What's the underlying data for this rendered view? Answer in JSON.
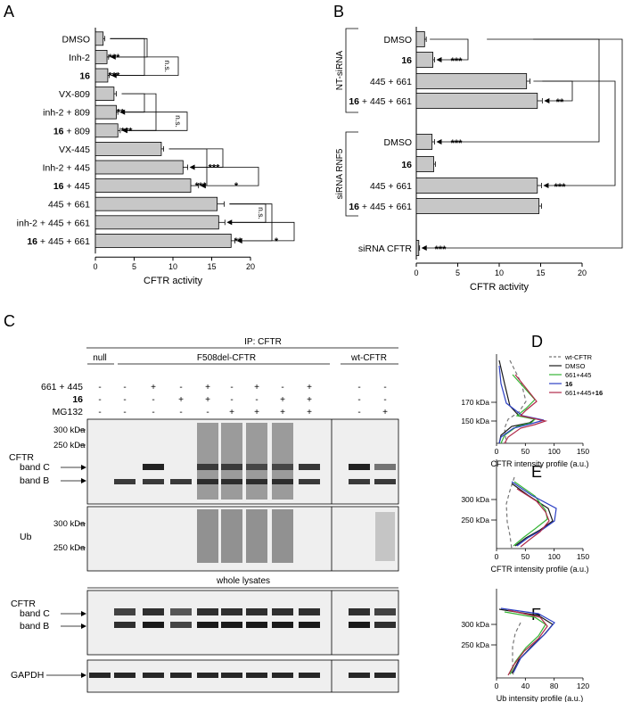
{
  "panels": {
    "A": "A",
    "B": "B",
    "C": "C",
    "D": "D",
    "E": "E",
    "F": "F"
  },
  "chart_data": [
    {
      "panel": "A",
      "type": "bar",
      "orientation": "horizontal",
      "categories": [
        "DMSO",
        "Inh-2",
        "16",
        "VX-809",
        "inh-2 + 809",
        "16 + 809",
        "VX-445",
        "Inh-2 + 445",
        "16 + 445",
        "445 + 661",
        "inh-2 + 445 + 661",
        "16 + 445 + 661"
      ],
      "values": [
        1.0,
        1.5,
        1.6,
        2.4,
        2.7,
        2.9,
        8.5,
        11.3,
        12.3,
        15.7,
        15.9,
        17.5
      ],
      "errors": [
        0.2,
        0.2,
        0.2,
        0.3,
        0.2,
        0.3,
        0.3,
        0.6,
        1.0,
        0.9,
        0.8,
        0.5
      ],
      "xlabel": "CFTR activity",
      "xlim": [
        0,
        20
      ],
      "xticks": [
        0,
        5,
        10,
        15,
        20
      ],
      "significance": [
        "***",
        "***",
        "n.s.",
        "**",
        "***",
        "n.s.",
        "***",
        "***",
        "*",
        "n.s.",
        "**",
        "*"
      ]
    },
    {
      "panel": "B",
      "type": "bar",
      "orientation": "horizontal",
      "groups": [
        "NT-siRNA",
        "siRNA RNF5"
      ],
      "categories": [
        "DMSO",
        "16",
        "445 + 661",
        "16 + 445 + 661",
        "DMSO",
        "16",
        "445 + 661",
        "16 + 445 + 661",
        "siRNA CFTR"
      ],
      "values": [
        1.0,
        2.0,
        13.3,
        14.6,
        1.9,
        2.1,
        14.6,
        14.8,
        0.3
      ],
      "errors": [
        0.2,
        0.2,
        0.4,
        0.6,
        0.3,
        0.2,
        0.5,
        0.3,
        0.1
      ],
      "xlabel": "CFTR activity",
      "xlim": [
        0,
        20
      ],
      "xticks": [
        0,
        5,
        10,
        15,
        20
      ],
      "significance": [
        "***",
        "**",
        "***",
        "***",
        "***"
      ]
    },
    {
      "panel": "D",
      "type": "line",
      "xlabel": "CFTR intensity profile (a.u.)",
      "xticks": [
        0,
        50,
        100,
        150
      ],
      "ylabels": [
        "170 kDa",
        "150 kDa"
      ],
      "series": [
        {
          "name": "wt-CFTR",
          "color": "#777777",
          "dashed": true
        },
        {
          "name": "DMSO",
          "color": "#1a1a1a"
        },
        {
          "name": "661+445",
          "color": "#35b535"
        },
        {
          "name": "16",
          "color": "#2b3fc4"
        },
        {
          "name": "661+445+16",
          "color": "#b02a4a"
        }
      ]
    },
    {
      "panel": "E",
      "type": "line",
      "xlabel": "CFTR intensity profile (a.u.)",
      "xticks": [
        0,
        50,
        100,
        150
      ],
      "ylabels": [
        "300 kDa",
        "250 kDa"
      ]
    },
    {
      "panel": "F",
      "type": "line",
      "xlabel": "Ub intensity profile (a.u.)",
      "xticks": [
        0,
        40,
        80,
        120
      ],
      "ylabels": [
        "300 kDa",
        "250 kDa"
      ]
    }
  ],
  "blot": {
    "ip_title": "IP: CFTR",
    "header_null": "null",
    "header_f508": "F508del-CFTR",
    "header_wt": "wt-CFTR",
    "row_labels": [
      "661 + 445",
      "16",
      "MG132"
    ],
    "conditions": [
      [
        "-",
        "-",
        "+",
        "-",
        "+",
        "-",
        "+",
        "-",
        "+",
        "-",
        "-"
      ],
      [
        "-",
        "-",
        "-",
        "+",
        "+",
        "-",
        "-",
        "+",
        "+",
        "-",
        "-"
      ],
      [
        "-",
        "-",
        "-",
        "-",
        "-",
        "+",
        "+",
        "+",
        "+",
        "-",
        "+"
      ]
    ],
    "mw_cftr": [
      "300 kDa",
      "250 kDa"
    ],
    "mw_ub": [
      "300 kDa",
      "250 kDa"
    ],
    "cftr_label": "CFTR",
    "band_c": "band C",
    "band_b": "band B",
    "ub_label": "Ub",
    "whole_lysates": "whole lysates",
    "gapdh": "GAPDH"
  }
}
